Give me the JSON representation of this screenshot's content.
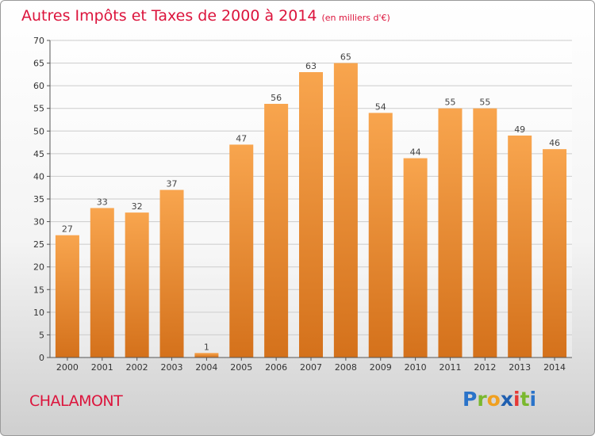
{
  "header": {
    "title": "Autres Impôts et Taxes de 2000 à 2014",
    "unit_note": "(en milliers d'€)"
  },
  "footer": {
    "commune": "CHALAMONT",
    "brand": "Proxiti"
  },
  "colors": {
    "bar_light": "#f8a54e",
    "bar_dark": "#d4711b",
    "title": "#dc143c",
    "grid": "#cccccc"
  },
  "chart_data": {
    "type": "bar",
    "title": "Autres Impôts et Taxes de 2000 à 2014",
    "categories": [
      "2000",
      "2001",
      "2002",
      "2003",
      "2004",
      "2005",
      "2006",
      "2007",
      "2008",
      "2009",
      "2010",
      "2011",
      "2012",
      "2013",
      "2014"
    ],
    "values": [
      27,
      33,
      32,
      37,
      1,
      47,
      56,
      63,
      65,
      54,
      44,
      55,
      55,
      49,
      46
    ],
    "ylim": [
      0,
      70
    ],
    "yticks": [
      0,
      5,
      10,
      15,
      20,
      25,
      30,
      35,
      40,
      45,
      50,
      55,
      60,
      65,
      70
    ],
    "grid": true,
    "data_labels": true
  }
}
